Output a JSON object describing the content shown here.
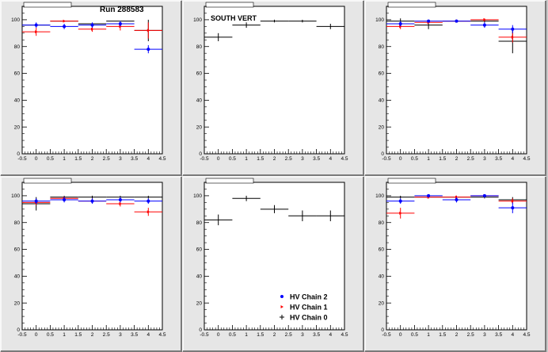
{
  "header": {
    "run_label": "Run 288583"
  },
  "colors": {
    "chain2": "#0000ff",
    "chain1": "#ff0000",
    "chain0": "#000000"
  },
  "chart_data": [
    {
      "type": "scatter",
      "panel_title": "",
      "annotation": "",
      "xlim": [
        -0.5,
        4.5
      ],
      "ylim": [
        0,
        110
      ],
      "xticks": [
        "-0.5",
        "0",
        "0.5",
        "1",
        "1.5",
        "2",
        "2.5",
        "3",
        "3.5",
        "4",
        "4.5"
      ],
      "yticks": [
        "0",
        "20",
        "40",
        "60",
        "80",
        "100"
      ],
      "series": [
        {
          "key": "chain0",
          "x": [
            0,
            1,
            2,
            3,
            4
          ],
          "y": [
            96,
            99,
            97,
            99,
            92
          ],
          "err": [
            0,
            0,
            0,
            0,
            8
          ]
        },
        {
          "key": "chain1",
          "x": [
            0,
            1,
            2,
            3,
            4
          ],
          "y": [
            91,
            99,
            93,
            95,
            92
          ],
          "err": [
            3,
            0,
            2,
            3,
            6
          ]
        },
        {
          "key": "chain2",
          "x": [
            0,
            1,
            2,
            3,
            4
          ],
          "y": [
            96,
            95,
            96,
            97,
            78
          ],
          "err": [
            2,
            2,
            2,
            2,
            3
          ]
        }
      ]
    },
    {
      "type": "scatter",
      "panel_title": "",
      "annotation": "SOUTH VERT",
      "xlim": [
        -0.5,
        4.5
      ],
      "ylim": [
        0,
        110
      ],
      "xticks": [
        "-0.5",
        "0",
        "0.5",
        "1",
        "1.5",
        "2",
        "2.5",
        "3",
        "3.5",
        "4",
        "4.5"
      ],
      "yticks": [
        "0",
        "20",
        "40",
        "60",
        "80",
        "100"
      ],
      "series": [
        {
          "key": "chain0",
          "x": [
            0,
            1,
            2,
            3,
            4
          ],
          "y": [
            87,
            96,
            99,
            99,
            95
          ],
          "err": [
            3,
            2,
            1,
            1,
            2
          ]
        }
      ]
    },
    {
      "type": "scatter",
      "panel_title": "",
      "annotation": "",
      "xlim": [
        -0.5,
        4.5
      ],
      "ylim": [
        0,
        110
      ],
      "xticks": [
        "-0.5",
        "0",
        "0.5",
        "1",
        "1.5",
        "2",
        "2.5",
        "3",
        "3.5",
        "4",
        "4.5"
      ],
      "yticks": [
        "0",
        "20",
        "40",
        "60",
        "80",
        "100"
      ],
      "series": [
        {
          "key": "chain0",
          "x": [
            0,
            1,
            2,
            3,
            4
          ],
          "y": [
            99,
            96,
            99,
            99,
            84
          ],
          "err": [
            2,
            3,
            1,
            1,
            9
          ]
        },
        {
          "key": "chain1",
          "x": [
            0,
            1,
            2,
            3,
            4
          ],
          "y": [
            95,
            98,
            99,
            100,
            87
          ],
          "err": [
            2,
            1,
            1,
            1,
            4
          ]
        },
        {
          "key": "chain2",
          "x": [
            0,
            1,
            2,
            3,
            4
          ],
          "y": [
            97,
            99,
            99,
            96,
            93
          ],
          "err": [
            2,
            1,
            1,
            2,
            3
          ]
        }
      ]
    },
    {
      "type": "scatter",
      "panel_title": "",
      "annotation": "",
      "xlim": [
        -0.5,
        4.5
      ],
      "ylim": [
        0,
        110
      ],
      "xticks": [
        "-0.5",
        "0",
        "0.5",
        "1",
        "1.5",
        "2",
        "2.5",
        "3",
        "3.5",
        "4",
        "4.5"
      ],
      "yticks": [
        "0",
        "20",
        "40",
        "60",
        "80",
        "100"
      ],
      "series": [
        {
          "key": "chain0",
          "x": [
            0,
            1,
            2,
            3,
            4
          ],
          "y": [
            94,
            99,
            99,
            99,
            99
          ],
          "err": [
            5,
            1,
            1,
            1,
            1
          ]
        },
        {
          "key": "chain1",
          "x": [
            0,
            1,
            2,
            3,
            4
          ],
          "y": [
            95,
            98,
            96,
            94,
            88
          ],
          "err": [
            2,
            1,
            2,
            2,
            3
          ]
        },
        {
          "key": "chain2",
          "x": [
            0,
            1,
            2,
            3,
            4
          ],
          "y": [
            96,
            97,
            96,
            97,
            96
          ],
          "err": [
            2,
            2,
            2,
            2,
            2
          ]
        }
      ]
    },
    {
      "type": "scatter",
      "panel_title": "",
      "annotation": "",
      "xlim": [
        -0.5,
        4.5
      ],
      "ylim": [
        0,
        110
      ],
      "xticks": [
        "-0.5",
        "0",
        "0.5",
        "1",
        "1.5",
        "2",
        "2.5",
        "3",
        "3.5",
        "4",
        "4.5"
      ],
      "yticks": [
        "0",
        "20",
        "40",
        "60",
        "80",
        "100"
      ],
      "series": [
        {
          "key": "chain0",
          "x": [
            0,
            1,
            2,
            3,
            4
          ],
          "y": [
            82,
            98,
            90,
            85,
            85
          ],
          "err": [
            4,
            2,
            3,
            4,
            4
          ]
        }
      ],
      "legend": {
        "placement": "bottom-right",
        "entries": [
          {
            "key": "chain2",
            "label": "HV Chain 2"
          },
          {
            "key": "chain1",
            "label": "HV Chain 1"
          },
          {
            "key": "chain0",
            "label": "HV Chain 0"
          }
        ]
      }
    },
    {
      "type": "scatter",
      "panel_title": "",
      "annotation": "",
      "xlim": [
        -0.5,
        4.5
      ],
      "ylim": [
        0,
        110
      ],
      "xticks": [
        "-0.5",
        "0",
        "0.5",
        "1",
        "1.5",
        "2",
        "2.5",
        "3",
        "3.5",
        "4",
        "4.5"
      ],
      "yticks": [
        "0",
        "20",
        "40",
        "60",
        "80",
        "100"
      ],
      "series": [
        {
          "key": "chain0",
          "x": [
            0,
            1,
            2,
            3,
            4
          ],
          "y": [
            99,
            99,
            99,
            99,
            97
          ],
          "err": [
            1,
            1,
            1,
            1,
            2
          ]
        },
        {
          "key": "chain1",
          "x": [
            0,
            1,
            2,
            3,
            4
          ],
          "y": [
            87,
            99,
            99,
            100,
            96
          ],
          "err": [
            4,
            1,
            1,
            1,
            2
          ]
        },
        {
          "key": "chain2",
          "x": [
            0,
            1,
            2,
            3,
            4
          ],
          "y": [
            96,
            100,
            97,
            100,
            91
          ],
          "err": [
            2,
            1,
            2,
            1,
            4
          ]
        }
      ]
    }
  ]
}
